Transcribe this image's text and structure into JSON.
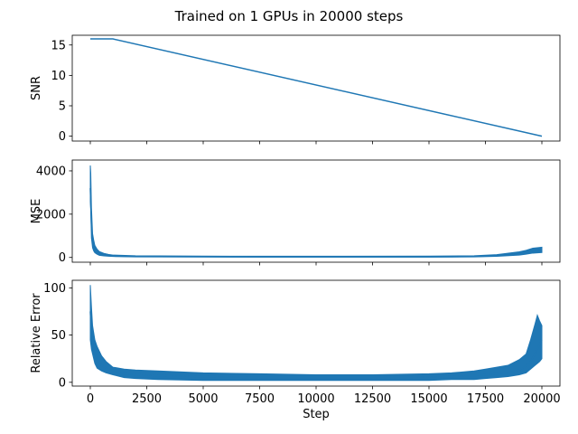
{
  "figure": {
    "title": "Trained on 1 GPUs in 20000 steps",
    "line_color": "#1f77b4"
  },
  "chart_data": [
    {
      "type": "line",
      "ylabel": "SNR",
      "xlabel": "",
      "xlim": [
        -800,
        20800
      ],
      "ylim": [
        -0.8,
        16.6
      ],
      "xticks": [
        0,
        2500,
        5000,
        7500,
        10000,
        12500,
        15000,
        17500,
        20000
      ],
      "yticks": [
        0,
        5,
        10,
        15
      ],
      "show_xtick_labels": false,
      "grid": false,
      "series": [
        {
          "x": [
            0,
            1000,
            20000
          ],
          "y": [
            16,
            16,
            0
          ],
          "band": null
        }
      ]
    },
    {
      "type": "line",
      "ylabel": "MSE",
      "xlabel": "",
      "xlim": [
        -800,
        20800
      ],
      "ylim": [
        -220,
        4500
      ],
      "xticks": [
        0,
        2500,
        5000,
        7500,
        10000,
        12500,
        15000,
        17500,
        20000
      ],
      "yticks": [
        0,
        2000,
        4000
      ],
      "show_xtick_labels": false,
      "grid": false,
      "series": [
        {
          "x": [
            0,
            50,
            100,
            150,
            200,
            300,
            400,
            600,
            800,
            1000,
            1500,
            2000,
            3000,
            5000,
            7500,
            10000,
            12500,
            15000,
            16000,
            17000,
            17500,
            18000,
            18500,
            19000,
            19300,
            19500,
            19700,
            20000
          ],
          "y": [
            3200,
            1500,
            700,
            450,
            300,
            200,
            150,
            110,
            85,
            70,
            55,
            45,
            40,
            35,
            33,
            32,
            32,
            33,
            36,
            45,
            60,
            85,
            120,
            170,
            220,
            260,
            320,
            330
          ],
          "band": [
            [
              0,
              2600,
              4250
            ],
            [
              20,
              2200,
              3900
            ],
            [
              50,
              900,
              2300
            ],
            [
              100,
              450,
              1100
            ],
            [
              150,
              300,
              800
            ],
            [
              200,
              220,
              560
            ],
            [
              300,
              150,
              380
            ],
            [
              400,
              100,
              270
            ],
            [
              600,
              70,
              190
            ],
            [
              800,
              55,
              140
            ],
            [
              1000,
              45,
              110
            ],
            [
              2000,
              25,
              80
            ],
            [
              5000,
              18,
              60
            ],
            [
              10000,
              15,
              55
            ],
            [
              15000,
              15,
              60
            ],
            [
              17000,
              25,
              80
            ],
            [
              18000,
              50,
              130
            ],
            [
              19000,
              110,
              260
            ],
            [
              19300,
              150,
              330
            ],
            [
              19600,
              200,
              430
            ],
            [
              20000,
              230,
              470
            ]
          ]
        }
      ]
    },
    {
      "type": "line",
      "ylabel": "Relative Error",
      "xlabel": "Step",
      "xlim": [
        -800,
        20800
      ],
      "ylim": [
        -4,
        108
      ],
      "xticks": [
        0,
        2500,
        5000,
        7500,
        10000,
        12500,
        15000,
        17500,
        20000
      ],
      "yticks": [
        0,
        50,
        100
      ],
      "show_xtick_labels": true,
      "grid": false,
      "series": [
        {
          "x": [
            0,
            50,
            100,
            200,
            300,
            500,
            700,
            1000,
            1500,
            2000,
            3000,
            5000,
            7500,
            10000,
            12500,
            15000,
            16000,
            17000,
            17500,
            18000,
            18500,
            19000,
            19300,
            19500,
            19700,
            19800,
            19900,
            20000
          ],
          "y": [
            75,
            50,
            40,
            30,
            25,
            18,
            15,
            11,
            9,
            8,
            7,
            6,
            5,
            5,
            5,
            5.5,
            6,
            7,
            8,
            9,
            10,
            13,
            17,
            22,
            30,
            35,
            40,
            45
          ],
          "band": [
            [
              0,
              45,
              103
            ],
            [
              50,
              35,
              80
            ],
            [
              100,
              30,
              60
            ],
            [
              200,
              20,
              45
            ],
            [
              300,
              15,
              38
            ],
            [
              500,
              12,
              28
            ],
            [
              700,
              10,
              22
            ],
            [
              1000,
              8,
              16
            ],
            [
              1500,
              5,
              14
            ],
            [
              2000,
              4,
              13
            ],
            [
              3000,
              3,
              12
            ],
            [
              5000,
              2,
              10
            ],
            [
              7500,
              2,
              9
            ],
            [
              10000,
              2,
              8
            ],
            [
              12500,
              2,
              8
            ],
            [
              15000,
              2,
              9
            ],
            [
              16000,
              3,
              10
            ],
            [
              17000,
              3,
              12
            ],
            [
              17500,
              4,
              14
            ],
            [
              18000,
              5,
              16
            ],
            [
              18500,
              6,
              18
            ],
            [
              19000,
              8,
              24
            ],
            [
              19300,
              10,
              30
            ],
            [
              19500,
              14,
              45
            ],
            [
              19700,
              18,
              62
            ],
            [
              19800,
              20,
              71
            ],
            [
              19900,
              22,
              65
            ],
            [
              20000,
              25,
              60
            ]
          ]
        }
      ]
    }
  ]
}
